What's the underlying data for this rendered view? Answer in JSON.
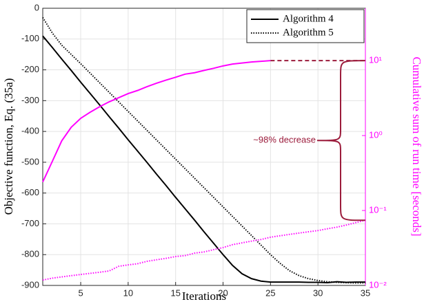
{
  "chart_data": {
    "type": "line",
    "xlabel": "Iterations",
    "ylabel": "Objective function, Eq. (35a)",
    "y2label": "Cumulative sum of run time [seconds]",
    "xlim": [
      1,
      35
    ],
    "xticks": [
      5,
      10,
      15,
      20,
      25,
      30,
      35
    ],
    "ylim": [
      -900,
      0
    ],
    "yticks": [
      0,
      -100,
      -200,
      -300,
      -400,
      -500,
      -600,
      -700,
      -800,
      -900
    ],
    "y2lim": [
      0.01,
      50
    ],
    "y2scale": "log",
    "y2ticks": [
      {
        "value": 0.01,
        "label": "10⁻²"
      },
      {
        "value": 0.1,
        "label": "10⁻¹"
      },
      {
        "value": 1,
        "label": "10⁰"
      },
      {
        "value": 10,
        "label": "10¹"
      }
    ],
    "y2color": "#ff00ff",
    "grid": true,
    "legend": "upper right",
    "x": [
      1,
      2,
      3,
      4,
      5,
      6,
      7,
      8,
      9,
      10,
      11,
      12,
      13,
      14,
      15,
      16,
      17,
      18,
      19,
      20,
      21,
      22,
      23,
      24,
      25,
      26,
      27,
      28,
      29,
      30,
      31,
      32,
      33,
      34,
      35
    ],
    "series": [
      {
        "name": "Algorithm 4",
        "color": "#000000",
        "linestyle": "solid",
        "values": [
          -90,
          -127,
          -165,
          -202,
          -240,
          -277,
          -314,
          -352,
          -389,
          -427,
          -464,
          -501,
          -539,
          -576,
          -614,
          -651,
          -688,
          -726,
          -763,
          -800,
          -835,
          -862,
          -878,
          -886,
          -889,
          -889,
          -889,
          -889,
          -890,
          -890,
          -891,
          -888,
          -890,
          -889,
          -889
        ]
      },
      {
        "name": "Algorithm 5",
        "color": "#000000",
        "linestyle": "dotted",
        "values": [
          -30,
          -80,
          -120,
          -150,
          -180,
          -211,
          -242,
          -273,
          -304,
          -335,
          -366,
          -397,
          -428,
          -459,
          -490,
          -521,
          -552,
          -583,
          -614,
          -645,
          -676,
          -707,
          -738,
          -769,
          -800,
          -828,
          -852,
          -868,
          -878,
          -884,
          -888,
          -890,
          -891,
          -892,
          -892
        ]
      },
      {
        "color": "#ff00ff",
        "linestyle": "solid",
        "axis": "y2",
        "values": [
          0.24,
          0.45,
          0.85,
          1.29,
          1.7,
          2.05,
          2.43,
          2.82,
          3.2,
          3.63,
          4.0,
          4.5,
          5.0,
          5.5,
          6.0,
          6.6,
          6.9,
          7.4,
          7.9,
          8.5,
          9.0,
          9.3,
          9.6,
          9.8,
          10,
          null,
          null,
          null,
          null,
          null,
          null,
          null,
          null,
          null,
          null
        ]
      },
      {
        "color": "#ff00ff",
        "linestyle": "dotted",
        "axis": "y2",
        "values": [
          0.0118,
          0.0125,
          0.013,
          0.0135,
          0.014,
          0.0145,
          0.015,
          0.0156,
          0.018,
          0.0188,
          0.0195,
          0.021,
          0.022,
          0.023,
          0.0243,
          0.025,
          0.027,
          0.028,
          0.03,
          0.032,
          0.035,
          0.037,
          0.039,
          0.041,
          0.044,
          0.046,
          0.048,
          0.05,
          0.052,
          0.054,
          0.057,
          0.06,
          0.064,
          0.069,
          0.074
        ]
      }
    ],
    "annotation": {
      "text": "~98% decrease",
      "color": "#9b1b3b"
    }
  }
}
